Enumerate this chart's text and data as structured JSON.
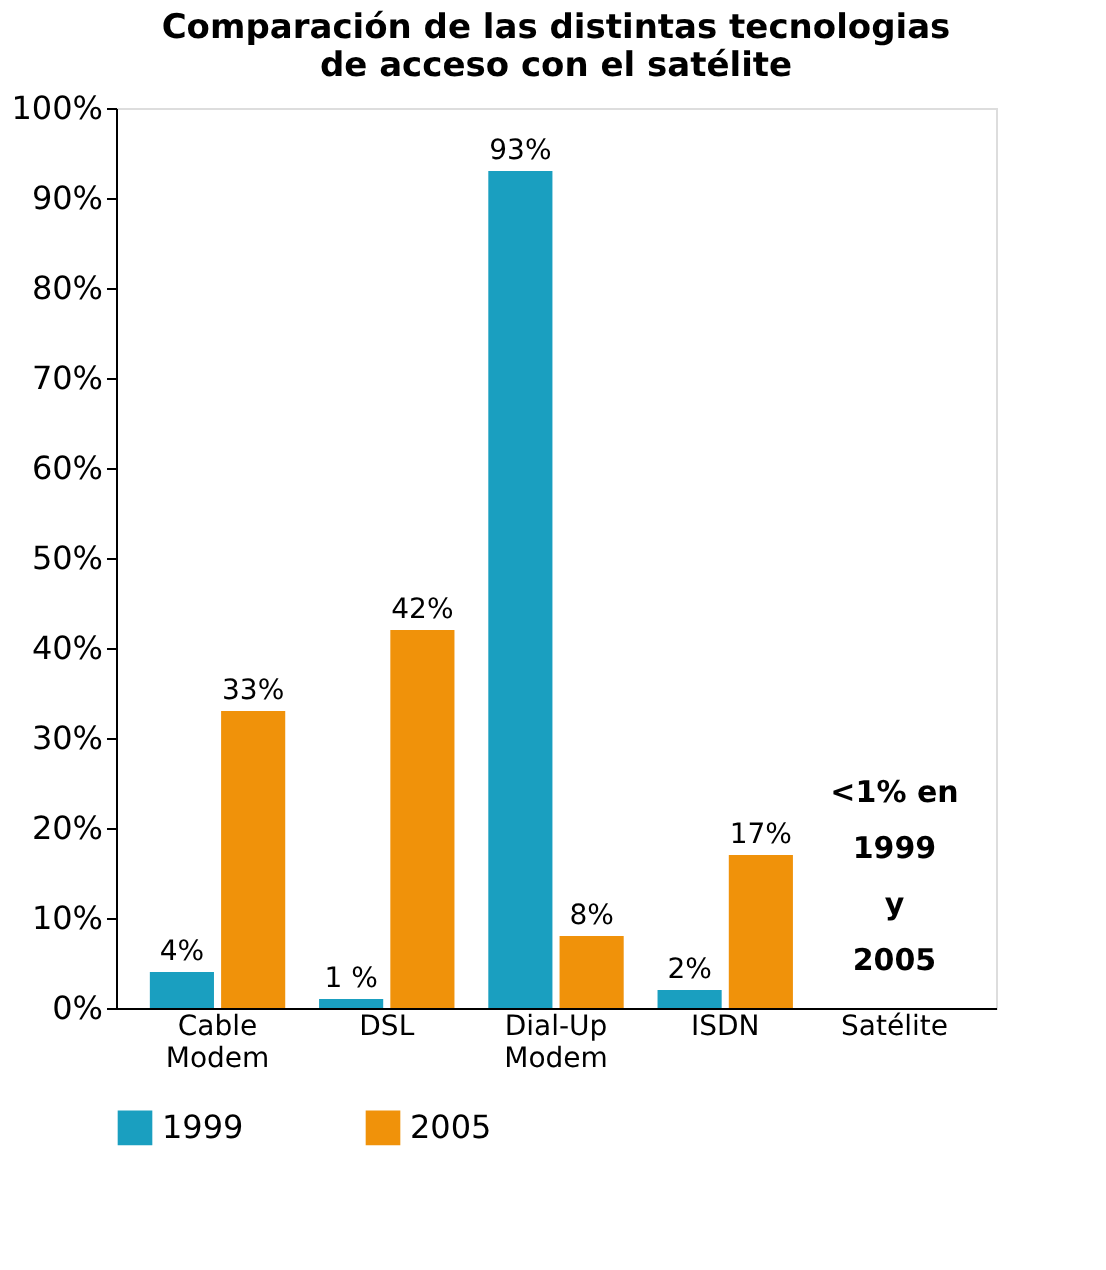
{
  "chart_data": {
    "type": "bar",
    "title": "Comparación de las distintas tecnologias\nde acceso con el satélite",
    "categories": [
      "Cable\nModem",
      "DSL",
      "Dial-Up\nModem",
      "ISDN",
      "Satélite"
    ],
    "series": [
      {
        "name": "1999",
        "color": "#1a9fc0",
        "values": [
          4,
          1,
          93,
          2,
          null
        ],
        "value_labels": [
          "4%",
          "1 %",
          "93%",
          "2%",
          null
        ]
      },
      {
        "name": "2005",
        "color": "#f0920a",
        "values": [
          33,
          42,
          8,
          17,
          null
        ],
        "value_labels": [
          "33%",
          "42%",
          "8%",
          "17%",
          null
        ]
      }
    ],
    "ylim": [
      0,
      100
    ],
    "yticks": [
      {
        "value": 0,
        "label": "0%"
      },
      {
        "value": 10,
        "label": "10%"
      },
      {
        "value": 20,
        "label": "20%"
      },
      {
        "value": 30,
        "label": "30%"
      },
      {
        "value": 40,
        "label": "40%"
      },
      {
        "value": 50,
        "label": "50%"
      },
      {
        "value": 60,
        "label": "60%"
      },
      {
        "value": 70,
        "label": "70%"
      },
      {
        "value": 80,
        "label": "80%"
      },
      {
        "value": 90,
        "label": "90%"
      },
      {
        "value": 100,
        "label": "100%"
      }
    ],
    "annotations": [
      "<1% en\n1999\ny\n2005"
    ],
    "grid": false,
    "legend": "bottom"
  }
}
